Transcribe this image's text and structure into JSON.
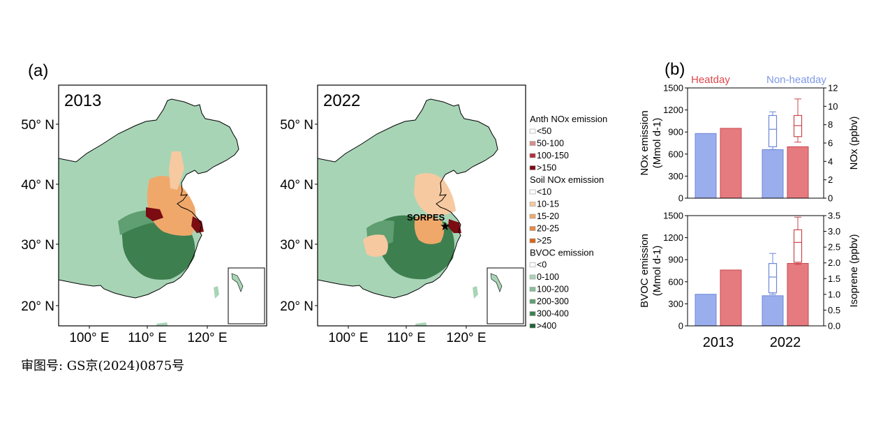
{
  "panel_a": {
    "label": "(a)",
    "maps": [
      {
        "year": "2013"
      },
      {
        "year": "2022",
        "site_label": "SORPES"
      }
    ],
    "lat_ticks": [
      "50° N",
      "40° N",
      "30° N",
      "20° N"
    ],
    "lon_ticks": [
      "100° E",
      "110° E",
      "120° E"
    ],
    "legend": {
      "groups": [
        {
          "title": "Anth NOx emission",
          "items": [
            {
              "label": "<50",
              "color": "#ffffff"
            },
            {
              "label": "50-100",
              "color": "#d98c8c"
            },
            {
              "label": "100-150",
              "color": "#b52d3a"
            },
            {
              "label": ">150",
              "color": "#7a0c12"
            }
          ]
        },
        {
          "title": "Soil NOx emission",
          "items": [
            {
              "label": "<10",
              "color": "#ffffff"
            },
            {
              "label": "10-15",
              "color": "#f6c9a0"
            },
            {
              "label": "15-20",
              "color": "#f0a86a"
            },
            {
              "label": "20-25",
              "color": "#e9893e"
            },
            {
              "label": ">25",
              "color": "#d8651b"
            }
          ]
        },
        {
          "title": "BVOC emission",
          "items": [
            {
              "label": "<0",
              "color": "#ffffff"
            },
            {
              "label": "0-100",
              "color": "#a8d4b6"
            },
            {
              "label": "100-200",
              "color": "#86be97"
            },
            {
              "label": "200-300",
              "color": "#5f9f71"
            },
            {
              "label": "300-400",
              "color": "#3e7f50"
            },
            {
              "label": ">400",
              "color": "#226236"
            }
          ]
        }
      ]
    },
    "approval_text": "审图号: GS京(2024)0875号"
  },
  "panel_b": {
    "label": "(b)",
    "legend": {
      "heatday": "Heatday",
      "nonheatday": "Non-heatday"
    },
    "colors": {
      "heat_fill": "#e57b7f",
      "heat_edge": "#c9474d",
      "non_fill": "#9aaeed",
      "non_edge": "#6d87d8"
    },
    "x_labels": [
      "2013",
      "2022"
    ],
    "charts": [
      {
        "ylabel_left": "NOx emission (Mmol d-1)",
        "ylabel_right": "NOx (ppbv)",
        "left_ticks": [
          "0",
          "300",
          "600",
          "900",
          "1200",
          "1500"
        ],
        "right_ticks": [
          "0",
          "2",
          "4",
          "6",
          "8",
          "10",
          "12"
        ],
        "left_max": 1500,
        "right_max": 12
      },
      {
        "ylabel_left": "BVOC emission (Mmol d-1)",
        "ylabel_right": "Isoprene (ppbv)",
        "left_ticks": [
          "0",
          "300",
          "600",
          "900",
          "1200",
          "1500"
        ],
        "right_ticks": [
          "0.0",
          "0.5",
          "1.0",
          "1.5",
          "2.0",
          "2.5",
          "3.0",
          "3.5"
        ],
        "left_max": 1500,
        "right_max": 3.5
      }
    ]
  },
  "chart_data": [
    {
      "type": "bar",
      "categories": [
        "2013",
        "2022"
      ],
      "ylabel": "NOx emission (Mmol d-1)",
      "ylim": [
        0,
        1500
      ],
      "series": [
        {
          "name": "Non-heatday",
          "values": [
            880,
            660
          ]
        },
        {
          "name": "Heatday",
          "values": [
            950,
            700
          ]
        }
      ],
      "boxplots_right_axis": {
        "ylabel": "NOx (ppbv)",
        "ylim": [
          0,
          12
        ],
        "2022": [
          {
            "name": "Non-heatday",
            "min": 5.3,
            "q1": 5.6,
            "median": 7.5,
            "q3": 9.0,
            "max": 9.4
          },
          {
            "name": "Heatday",
            "min": 6.1,
            "q1": 6.7,
            "median": 7.9,
            "q3": 9.0,
            "max": 10.8
          }
        ]
      }
    },
    {
      "type": "bar",
      "categories": [
        "2013",
        "2022"
      ],
      "ylabel": "BVOC emission (Mmol d-1)",
      "ylim": [
        0,
        1500
      ],
      "series": [
        {
          "name": "Non-heatday",
          "values": [
            430,
            410
          ]
        },
        {
          "name": "Heatday",
          "values": [
            760,
            850
          ]
        }
      ],
      "boxplots_right_axis": {
        "ylabel": "Isoprene (ppbv)",
        "ylim": [
          0,
          3.5
        ],
        "2022": [
          {
            "name": "Non-heatday",
            "min": 1.0,
            "q1": 1.05,
            "median": 1.55,
            "q3": 1.98,
            "max": 2.3
          },
          {
            "name": "Heatday",
            "min": 1.95,
            "q1": 2.02,
            "median": 2.65,
            "q3": 3.05,
            "max": 3.45
          }
        ]
      }
    }
  ]
}
